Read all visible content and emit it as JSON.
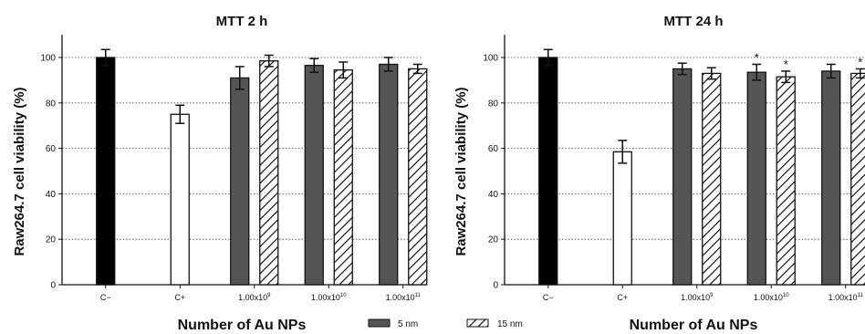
{
  "chart_data": [
    {
      "type": "bar",
      "title": "MTT 2 h",
      "ylabel": "Raw264.7 cell viability (%)",
      "xlabel": "Number of Au NPs",
      "ylim": [
        0,
        110
      ],
      "yticks": [
        "0",
        "20",
        "40",
        "60",
        "80",
        "100"
      ],
      "grid": "horizontal dotted",
      "controls": [
        {
          "label": "C−",
          "value": 100,
          "error": 3.5,
          "color": "#000000"
        },
        {
          "label": "C+",
          "value": 75,
          "error": 4,
          "color": "#ffffff"
        }
      ],
      "categories": [
        {
          "base": "1.00x10",
          "exp": "9"
        },
        {
          "base": "1.00x10",
          "exp": "10"
        },
        {
          "base": "1.00x10",
          "exp": "11"
        }
      ],
      "series": [
        {
          "name": "5 nm",
          "values": [
            91,
            96.5,
            97
          ],
          "errors": [
            5,
            3,
            3
          ],
          "marks": [
            "",
            "",
            ""
          ]
        },
        {
          "name": "15 nm",
          "values": [
            98.5,
            94.5,
            95
          ],
          "errors": [
            2.5,
            3.5,
            2
          ],
          "marks": [
            "",
            "",
            ""
          ]
        }
      ]
    },
    {
      "type": "bar",
      "title": "MTT 24 h",
      "ylabel": "Raw264.7 cell viability (%)",
      "xlabel": "Number of Au NPs",
      "ylim": [
        0,
        110
      ],
      "yticks": [
        "0",
        "20",
        "40",
        "60",
        "80",
        "100"
      ],
      "grid": "horizontal dotted",
      "controls": [
        {
          "label": "C−",
          "value": 100,
          "error": 3.5,
          "color": "#000000"
        },
        {
          "label": "C+",
          "value": 58.5,
          "error": 5,
          "color": "#ffffff"
        }
      ],
      "categories": [
        {
          "base": "1.00x10",
          "exp": "9"
        },
        {
          "base": "1.00x10",
          "exp": "10"
        },
        {
          "base": "1.00x10",
          "exp": "11"
        }
      ],
      "series": [
        {
          "name": "5 nm",
          "values": [
            95,
            93.5,
            94
          ],
          "errors": [
            2.5,
            3.5,
            3
          ],
          "marks": [
            "",
            "*",
            ""
          ]
        },
        {
          "name": "15 nm",
          "values": [
            93,
            91.5,
            93
          ],
          "errors": [
            2.5,
            2.5,
            2
          ],
          "marks": [
            "",
            "*",
            "*"
          ]
        }
      ]
    }
  ],
  "legend": {
    "placement": "bottom-center",
    "items": [
      {
        "label": "5 nm",
        "style": "solid",
        "color": "#555555"
      },
      {
        "label": "15 nm",
        "style": "hatched",
        "color": "#ffffff"
      }
    ]
  }
}
